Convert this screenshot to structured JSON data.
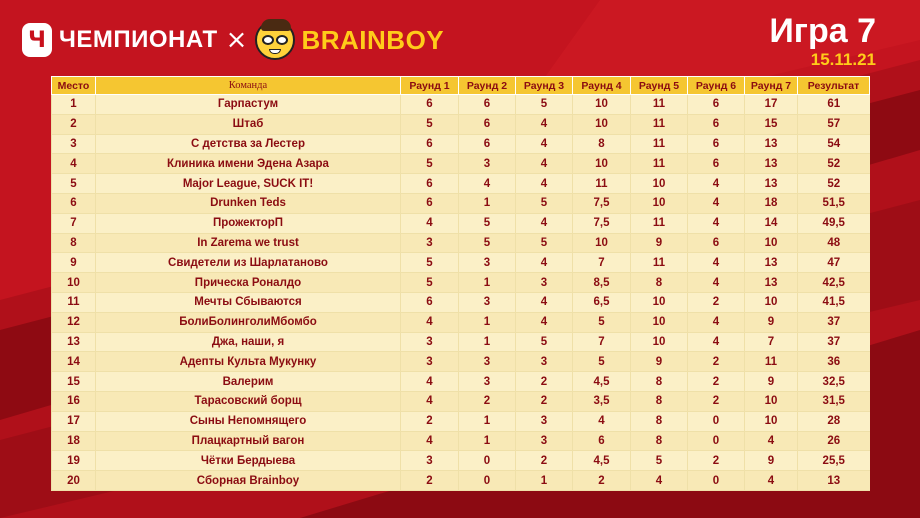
{
  "header": {
    "brand_left": "ЧЕМПИОНАТ",
    "badge_glyph": "Ч",
    "times": "×",
    "brand_right": "BRAINBOY",
    "game_title": "Игра 7",
    "game_date": "15.11.21"
  },
  "colors": {
    "background": "#b0101a",
    "header_row": "#f5c631",
    "table_body": "#fbf0c7",
    "text_dark_red": "#8b0c12",
    "accent_yellow": "#ffcc1a"
  },
  "table": {
    "columns": [
      "Место",
      "Команда",
      "Раунд 1",
      "Раунд 2",
      "Раунд 3",
      "Раунд 4",
      "Раунд 5",
      "Раунд 6",
      "Раунд 7",
      "Результат"
    ],
    "rows": [
      [
        "1",
        "Гарпастум",
        "6",
        "6",
        "5",
        "10",
        "11",
        "6",
        "17",
        "61"
      ],
      [
        "2",
        "Штаб",
        "5",
        "6",
        "4",
        "10",
        "11",
        "6",
        "15",
        "57"
      ],
      [
        "3",
        "С детства за Лестер",
        "6",
        "6",
        "4",
        "8",
        "11",
        "6",
        "13",
        "54"
      ],
      [
        "4",
        "Клиника имени Эдена Азара",
        "5",
        "3",
        "4",
        "10",
        "11",
        "6",
        "13",
        "52"
      ],
      [
        "5",
        "Major League, SUCK IT!",
        "6",
        "4",
        "4",
        "11",
        "10",
        "4",
        "13",
        "52"
      ],
      [
        "6",
        "Drunken Teds",
        "6",
        "1",
        "5",
        "7,5",
        "10",
        "4",
        "18",
        "51,5"
      ],
      [
        "7",
        "ПрожекторП",
        "4",
        "5",
        "4",
        "7,5",
        "11",
        "4",
        "14",
        "49,5"
      ],
      [
        "8",
        "In Zarema we trust",
        "3",
        "5",
        "5",
        "10",
        "9",
        "6",
        "10",
        "48"
      ],
      [
        "9",
        "Свидетели из Шарлатаново",
        "5",
        "3",
        "4",
        "7",
        "11",
        "4",
        "13",
        "47"
      ],
      [
        "10",
        "Прическа Роналдо",
        "5",
        "1",
        "3",
        "8,5",
        "8",
        "4",
        "13",
        "42,5"
      ],
      [
        "11",
        "Мечты Сбываются",
        "6",
        "3",
        "4",
        "6,5",
        "10",
        "2",
        "10",
        "41,5"
      ],
      [
        "12",
        "БолиБолинголиМбомбо",
        "4",
        "1",
        "4",
        "5",
        "10",
        "4",
        "9",
        "37"
      ],
      [
        "13",
        "Джа, наши, я",
        "3",
        "1",
        "5",
        "7",
        "10",
        "4",
        "7",
        "37"
      ],
      [
        "14",
        "Адепты Культа Мукунку",
        "3",
        "3",
        "3",
        "5",
        "9",
        "2",
        "11",
        "36"
      ],
      [
        "15",
        "Валерим",
        "4",
        "3",
        "2",
        "4,5",
        "8",
        "2",
        "9",
        "32,5"
      ],
      [
        "16",
        "Тарасовский борщ",
        "4",
        "2",
        "2",
        "3,5",
        "8",
        "2",
        "10",
        "31,5"
      ],
      [
        "17",
        "Сыны Непомнящего",
        "2",
        "1",
        "3",
        "4",
        "8",
        "0",
        "10",
        "28"
      ],
      [
        "18",
        "Плацкартный вагон",
        "4",
        "1",
        "3",
        "6",
        "8",
        "0",
        "4",
        "26"
      ],
      [
        "19",
        "Чётки Бердыева",
        "3",
        "0",
        "2",
        "4,5",
        "5",
        "2",
        "9",
        "25,5"
      ],
      [
        "20",
        "Сборная Brainboy",
        "2",
        "0",
        "1",
        "2",
        "4",
        "0",
        "4",
        "13"
      ]
    ]
  }
}
